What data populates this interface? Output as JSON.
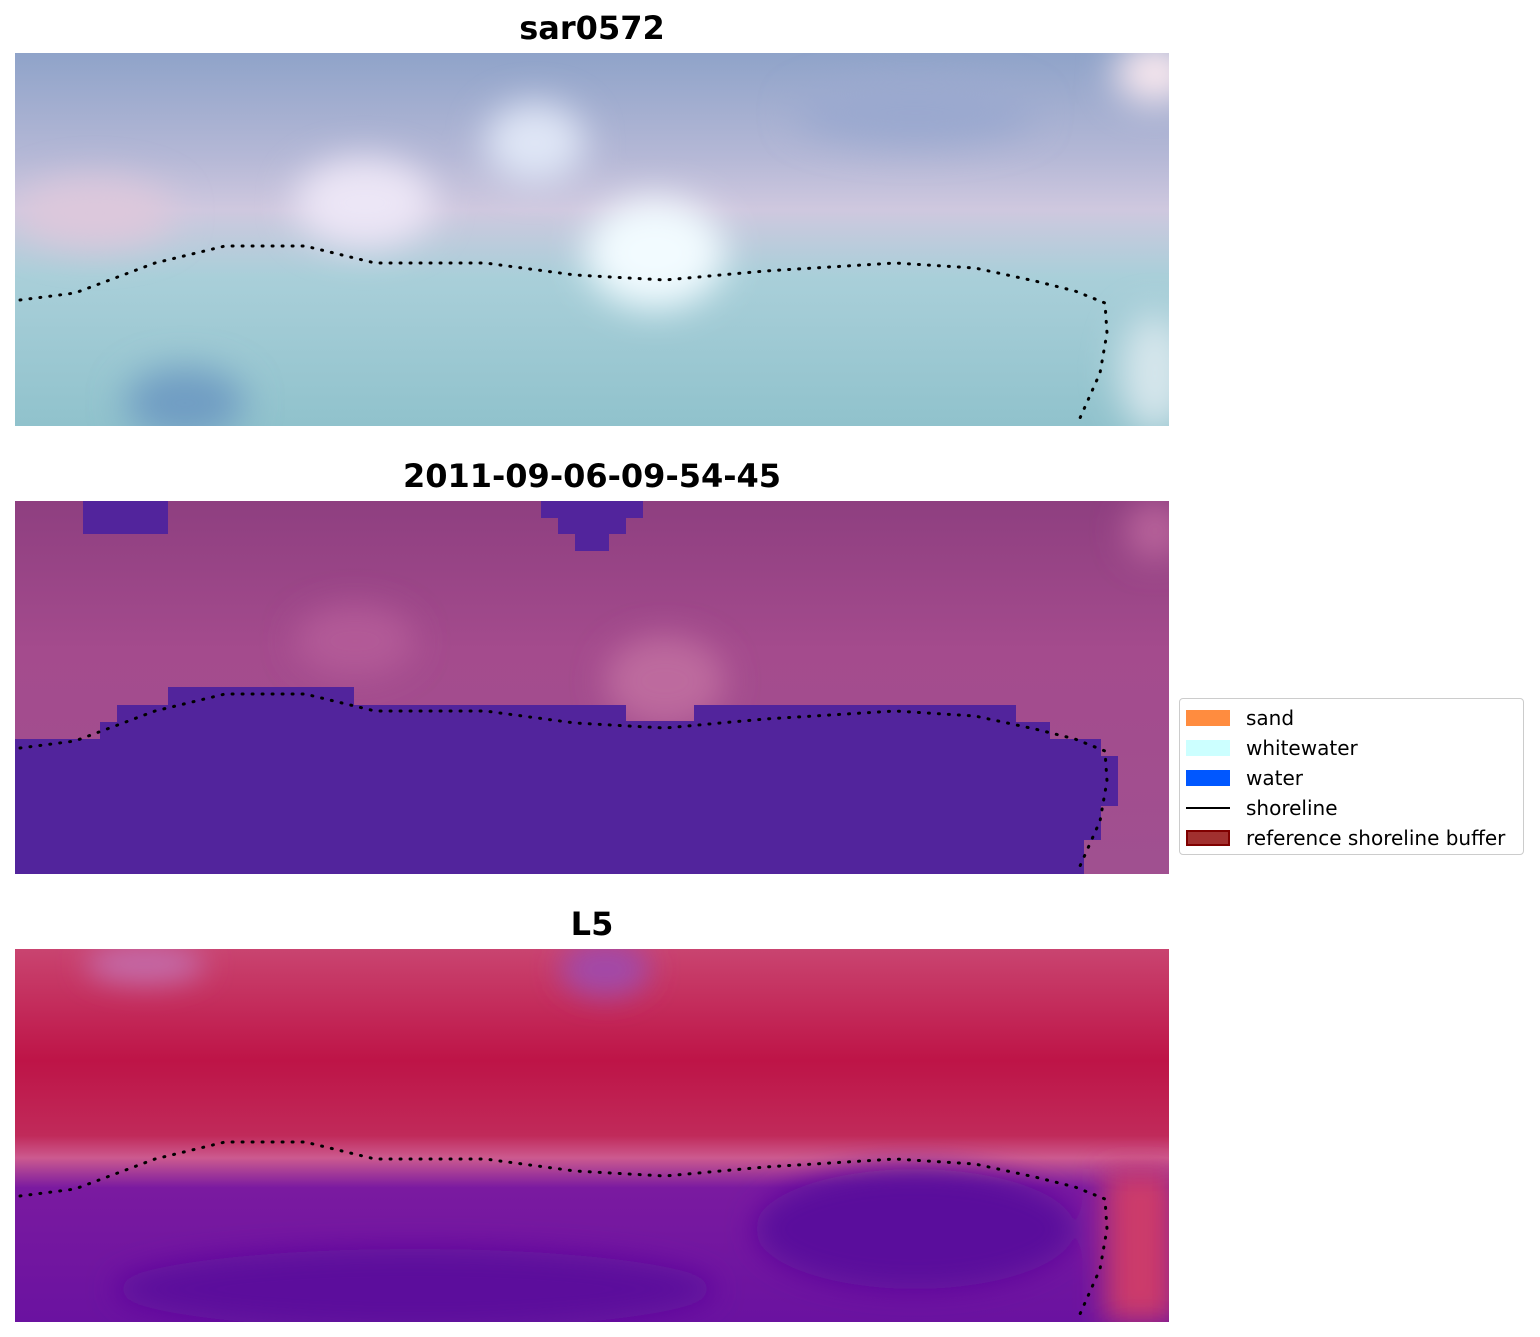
{
  "panels": [
    {
      "title": "sar0572"
    },
    {
      "title": "2011-09-06-09-54-45"
    },
    {
      "title": "L5"
    }
  ],
  "legend": {
    "items": [
      {
        "label": "sand",
        "kind": "patch",
        "color": "#ff8c3f"
      },
      {
        "label": "whitewater",
        "kind": "patch",
        "color": "#ccffff"
      },
      {
        "label": "water",
        "kind": "patch",
        "color": "#0057ff"
      },
      {
        "label": "shoreline",
        "kind": "line",
        "color": "#000000"
      },
      {
        "label": "reference shoreline buffer",
        "kind": "patch",
        "color": "#a1302f",
        "edge": "#800000"
      }
    ]
  },
  "colors": {
    "water_mask": "#52249c",
    "land_rgb": "#8f3f80",
    "index_high": "#c10838",
    "index_low": "#5a0a9e",
    "shoreline": "#000000"
  }
}
